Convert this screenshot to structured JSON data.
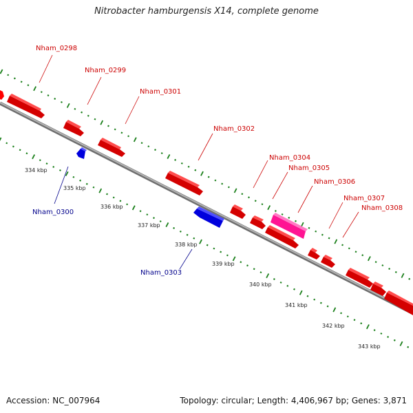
{
  "title": "Nitrobacter hamburgensis X14, complete genome",
  "accession": "Accession: NC_007964",
  "summary": "Topology: circular; Length: 4,406,967 bp; Genes: 3,871",
  "colors": {
    "forward_gene": "#ff0000",
    "reverse_gene": "#0000ee",
    "highlight_gene": "#ff1493",
    "backbone": "#8c8c8c",
    "tick": "#1a7f1a",
    "forward_label": "#cc0000",
    "reverse_label": "#00008b"
  },
  "kbp_labels": [
    "334 kbp",
    "335 kbp",
    "336 kbp",
    "337 kbp",
    "338 kbp",
    "339 kbp",
    "340 kbp",
    "341 kbp",
    "342 kbp",
    "343 kbp"
  ],
  "gene_labels": [
    {
      "text": "Nham_0298",
      "strand": "forward"
    },
    {
      "text": "Nham_0299",
      "strand": "forward"
    },
    {
      "text": "Nham_0300",
      "strand": "reverse"
    },
    {
      "text": "Nham_0301",
      "strand": "forward"
    },
    {
      "text": "Nham_0302",
      "strand": "forward"
    },
    {
      "text": "Nham_0303",
      "strand": "reverse"
    },
    {
      "text": "Nham_0304",
      "strand": "forward"
    },
    {
      "text": "Nham_0305",
      "strand": "forward"
    },
    {
      "text": "Nham_0306",
      "strand": "forward"
    },
    {
      "text": "Nham_0307",
      "strand": "forward"
    },
    {
      "text": "Nham_0308",
      "strand": "forward"
    }
  ]
}
